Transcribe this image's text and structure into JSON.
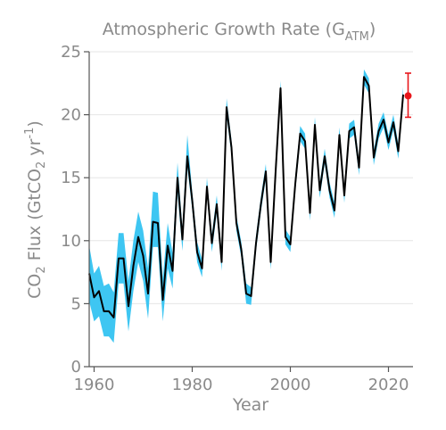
{
  "chart_data": {
    "type": "line",
    "title_main": "Atmospheric Growth Rate (G",
    "title_sub": "ATM",
    "title_close": ")",
    "xlabel": "Year",
    "ylabel_parts": [
      "CO",
      "2",
      " Flux (GtCO",
      "2",
      " yr",
      "-1",
      ")"
    ],
    "xlim": [
      1959,
      2025
    ],
    "ylim": [
      0,
      25
    ],
    "xticks": [
      1960,
      1980,
      2000,
      2020
    ],
    "yticks": [
      0,
      5,
      10,
      15,
      20,
      25
    ],
    "grid": "horizontal",
    "colors": {
      "line": "#000000",
      "band": "#3ec6f2",
      "highlight": "#e8161b"
    },
    "series": [
      {
        "x": [
          1959,
          1960,
          1961,
          1962,
          1963,
          1964,
          1965,
          1966,
          1967,
          1968,
          1969,
          1970,
          1971,
          1972,
          1973,
          1974,
          1975,
          1976,
          1977,
          1978,
          1979,
          1980,
          1981,
          1982,
          1983,
          1984,
          1985,
          1986,
          1987,
          1988,
          1989,
          1990,
          1991,
          1992,
          1993,
          1994,
          1995,
          1996,
          1997,
          1998,
          1999,
          2000,
          2001,
          2002,
          2003,
          2004,
          2005,
          2006,
          2007,
          2008,
          2009,
          2010,
          2011,
          2012,
          2013,
          2014,
          2015,
          2016,
          2017,
          2018,
          2019,
          2020,
          2021,
          2022,
          2023
        ],
        "y": [
          7.4,
          5.5,
          6.0,
          4.4,
          4.4,
          3.9,
          8.6,
          8.6,
          4.8,
          8.0,
          10.3,
          8.8,
          5.8,
          11.5,
          11.4,
          5.3,
          9.6,
          7.6,
          15.0,
          10.1,
          16.7,
          13.2,
          9.1,
          7.8,
          14.3,
          9.8,
          12.9,
          8.3,
          20.6,
          17.4,
          11.4,
          9.3,
          5.8,
          5.6,
          9.8,
          12.9,
          15.5,
          8.3,
          15.5,
          22.1,
          10.3,
          9.7,
          14.5,
          18.5,
          17.9,
          12.2,
          19.2,
          14.0,
          16.7,
          14.0,
          12.4,
          18.4,
          13.6,
          18.7,
          19.0,
          15.8,
          23.0,
          22.3,
          16.6,
          18.7,
          19.6,
          17.8,
          19.4,
          17.1,
          21.6
        ],
        "low": [
          5.2,
          3.6,
          4.0,
          2.4,
          2.4,
          1.9,
          6.6,
          6.6,
          2.8,
          6.0,
          8.3,
          6.8,
          3.8,
          9.5,
          9.5,
          3.6,
          7.8,
          6.2,
          13.8,
          9.2,
          15.8,
          12.5,
          8.3,
          7.1,
          13.6,
          9.1,
          12.2,
          7.6,
          19.9,
          16.8,
          10.8,
          8.7,
          5.0,
          4.9,
          9.2,
          12.3,
          14.9,
          7.7,
          14.9,
          21.5,
          9.7,
          9.1,
          13.9,
          17.9,
          17.3,
          11.6,
          18.6,
          13.4,
          16.1,
          13.4,
          11.8,
          17.8,
          13.0,
          18.1,
          18.4,
          15.2,
          22.4,
          21.7,
          16.0,
          18.1,
          19.0,
          17.2,
          18.8,
          16.5,
          21.0
        ],
        "high": [
          9.6,
          7.4,
          8.0,
          6.4,
          6.6,
          5.9,
          10.6,
          10.6,
          6.8,
          10.0,
          12.3,
          10.8,
          7.8,
          13.9,
          13.8,
          7.0,
          11.4,
          9.0,
          16.2,
          11.0,
          18.4,
          13.9,
          9.9,
          8.5,
          15.0,
          10.5,
          13.6,
          9.0,
          21.3,
          18.0,
          12.0,
          9.9,
          6.6,
          6.3,
          10.4,
          13.5,
          16.1,
          8.9,
          16.1,
          22.7,
          10.9,
          10.3,
          15.1,
          19.1,
          18.5,
          12.8,
          19.8,
          14.6,
          17.3,
          14.6,
          13.0,
          19.0,
          14.2,
          19.3,
          19.6,
          16.4,
          23.6,
          22.9,
          17.2,
          19.3,
          20.2,
          18.4,
          20.0,
          17.7,
          22.2
        ]
      }
    ],
    "projection": {
      "x": 2024,
      "y": 21.5,
      "low": 19.8,
      "high": 23.3
    }
  }
}
